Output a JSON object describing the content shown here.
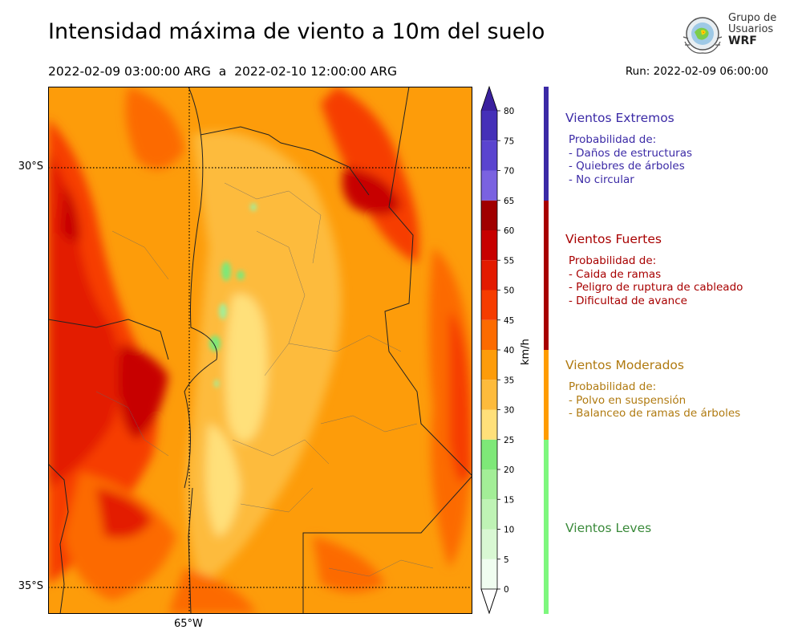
{
  "header": {
    "title": "Intensidad máxima de viento a 10m del suelo",
    "period": "2022-02-09 03:00:00 ARG  a  2022-02-10 12:00:00 ARG",
    "run": "Run: 2022-02-09 06:00:00"
  },
  "logo": {
    "line1": "Grupo de",
    "line2": "Usuarios",
    "line3": "WRF"
  },
  "map": {
    "lat_labels": [
      "30°S",
      "35°S"
    ],
    "lon_labels": [
      "65°W"
    ],
    "gridlines": "dotted"
  },
  "colorbar": {
    "unit": "km/h",
    "ticks": [
      "0",
      "5",
      "10",
      "15",
      "20",
      "25",
      "30",
      "35",
      "40",
      "45",
      "50",
      "55",
      "60",
      "65",
      "70",
      "75",
      "80"
    ],
    "levels": [
      {
        "from": 0,
        "to": 5,
        "color": "#f0fdf0"
      },
      {
        "from": 5,
        "to": 10,
        "color": "#d9f8d3"
      },
      {
        "from": 10,
        "to": 15,
        "color": "#bff3b5"
      },
      {
        "from": 15,
        "to": 20,
        "color": "#a3ee97"
      },
      {
        "from": 20,
        "to": 25,
        "color": "#7ee878"
      },
      {
        "from": 25,
        "to": 30,
        "color": "#ffe07a"
      },
      {
        "from": 30,
        "to": 35,
        "color": "#fdbb3c"
      },
      {
        "from": 35,
        "to": 40,
        "color": "#fd9c0a"
      },
      {
        "from": 40,
        "to": 45,
        "color": "#fc6b00"
      },
      {
        "from": 45,
        "to": 50,
        "color": "#f63c00"
      },
      {
        "from": 50,
        "to": 55,
        "color": "#e31a00"
      },
      {
        "from": 55,
        "to": 60,
        "color": "#c70000"
      },
      {
        "from": 60,
        "to": 65,
        "color": "#a00000"
      },
      {
        "from": 65,
        "to": 70,
        "color": "#7a62e0"
      },
      {
        "from": 70,
        "to": 75,
        "color": "#5a44cf"
      },
      {
        "from": 75,
        "to": 80,
        "color": "#4530b8"
      }
    ],
    "over_color": "#3a209e"
  },
  "categories": [
    {
      "title": "Vientos Extremos",
      "color": "#3b2aa6",
      "lines": [
        "Probabilidad de:",
        "- Daños de estructuras",
        "- Quiebres de árboles",
        "- No circular"
      ],
      "range": [
        65,
        80
      ]
    },
    {
      "title": "Vientos Fuertes",
      "color": "#a80000",
      "lines": [
        "Probabilidad de:",
        "- Caida de ramas",
        "- Peligro de ruptura de cableado",
        "- Dificultad de avance"
      ],
      "range": [
        40,
        65
      ]
    },
    {
      "title": "Vientos Moderados",
      "color": "#b07a10",
      "lines": [
        "Probabilidad de:",
        "- Polvo en suspensión",
        "- Balanceo de ramas de árboles"
      ],
      "range": [
        25,
        40
      ]
    },
    {
      "title": "Vientos Leves",
      "color": "#3a8a3a",
      "lines": [],
      "range": [
        0,
        25
      ]
    }
  ],
  "category_bar_colors": [
    "#3b2aa6",
    "#a80000",
    "#ff9c00",
    "#7ef77e"
  ]
}
